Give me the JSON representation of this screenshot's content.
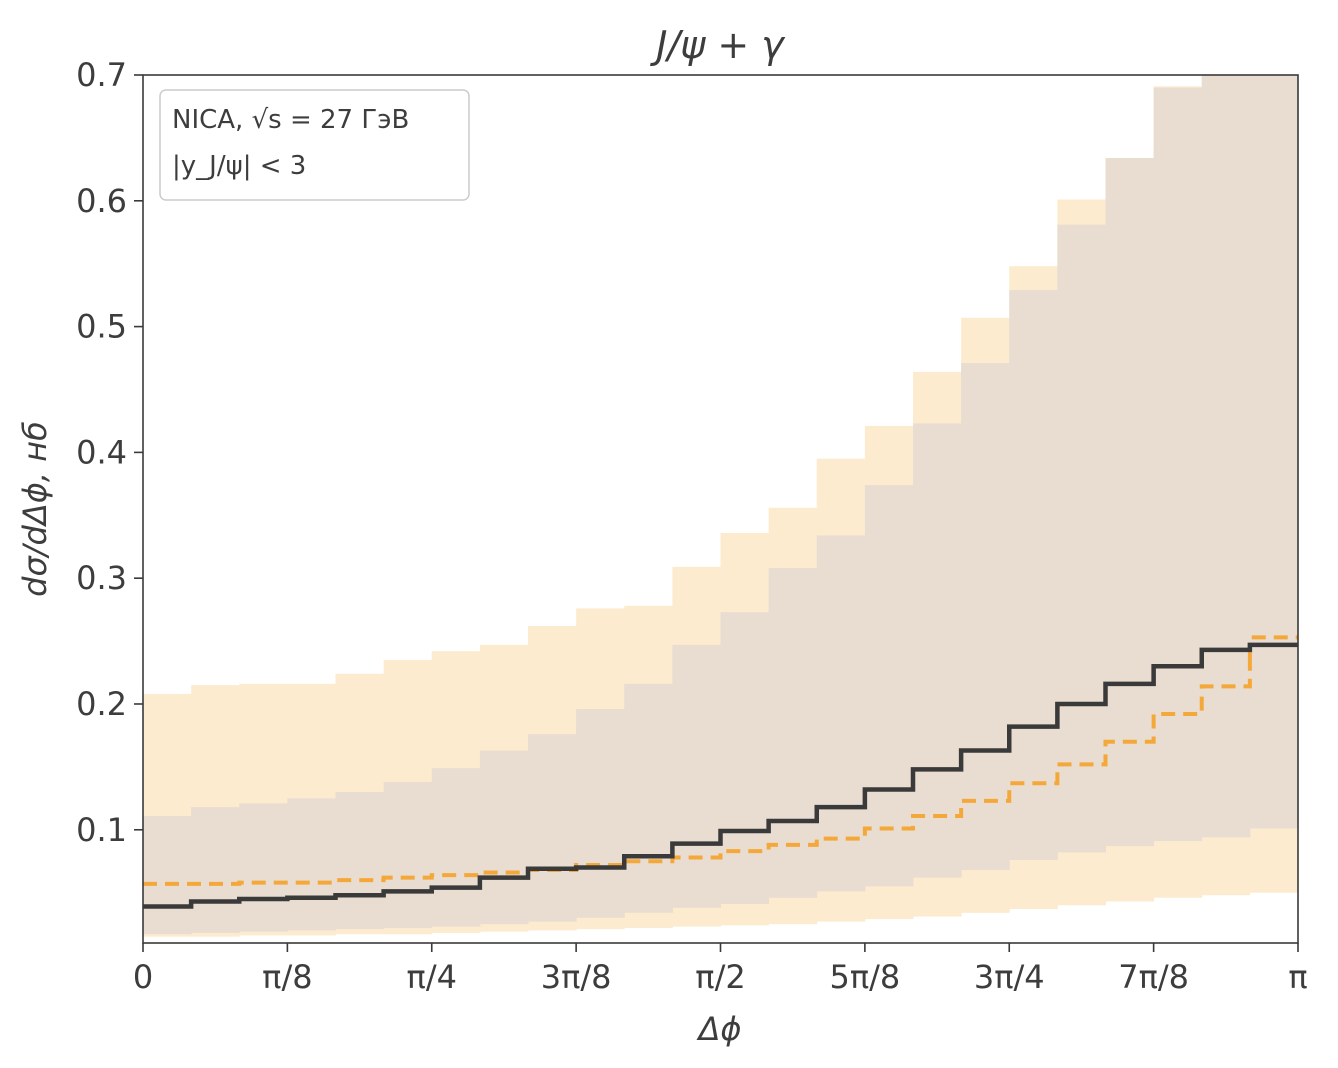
{
  "chart_data": {
    "type": "line",
    "title": "J/ψ + γ",
    "xlabel": "Δϕ",
    "ylabel": "dσ/dΔϕ, нб",
    "xlim": [
      0,
      3.14159
    ],
    "ylim": [
      0.01,
      0.7
    ],
    "x_tick_values": [
      0,
      0.3927,
      0.7854,
      1.1781,
      1.5708,
      1.9635,
      2.3562,
      2.7489,
      3.14159
    ],
    "x_tick_labels": [
      "0",
      "π/8",
      "π/4",
      "3π/8",
      "π/2",
      "5π/8",
      "3π/4",
      "7π/8",
      "π"
    ],
    "y_tick_values": [
      0.1,
      0.2,
      0.3,
      0.4,
      0.5,
      0.6,
      0.7
    ],
    "y_tick_labels": [
      "0.1",
      "0.2",
      "0.3",
      "0.4",
      "0.5",
      "0.6",
      "0.7"
    ],
    "bins": 24,
    "annotation_lines": [
      "NICA, √s = 27 ГэВ",
      "|y_J/ψ| < 3"
    ],
    "series": [
      {
        "style": "solid",
        "color": "#3a3a3a",
        "values": [
          0.039,
          0.043,
          0.045,
          0.046,
          0.048,
          0.051,
          0.054,
          0.062,
          0.069,
          0.07,
          0.079,
          0.089,
          0.099,
          0.107,
          0.118,
          0.132,
          0.148,
          0.163,
          0.182,
          0.2,
          0.216,
          0.23,
          0.243,
          0.247
        ],
        "band_low": [
          0.017,
          0.018,
          0.019,
          0.02,
          0.021,
          0.022,
          0.023,
          0.025,
          0.027,
          0.03,
          0.034,
          0.038,
          0.041,
          0.046,
          0.051,
          0.055,
          0.062,
          0.068,
          0.076,
          0.082,
          0.087,
          0.091,
          0.094,
          0.101
        ],
        "band_high": [
          0.111,
          0.118,
          0.121,
          0.125,
          0.13,
          0.138,
          0.149,
          0.163,
          0.176,
          0.196,
          0.216,
          0.247,
          0.273,
          0.308,
          0.334,
          0.374,
          0.423,
          0.471,
          0.529,
          0.581,
          0.634,
          0.69,
          0.72,
          0.72
        ],
        "band_color": "#e8ddd0"
      },
      {
        "style": "dashed",
        "color": "#f5a83a",
        "values": [
          0.057,
          0.057,
          0.058,
          0.058,
          0.06,
          0.062,
          0.064,
          0.066,
          0.068,
          0.072,
          0.075,
          0.078,
          0.083,
          0.088,
          0.093,
          0.101,
          0.111,
          0.123,
          0.137,
          0.152,
          0.17,
          0.192,
          0.214,
          0.237
        ],
        "values_last": 0.253,
        "band_low": [
          0.015,
          0.015,
          0.016,
          0.016,
          0.017,
          0.017,
          0.018,
          0.019,
          0.02,
          0.021,
          0.022,
          0.023,
          0.024,
          0.025,
          0.027,
          0.029,
          0.031,
          0.034,
          0.037,
          0.04,
          0.043,
          0.046,
          0.048,
          0.05
        ],
        "band_high": [
          0.208,
          0.215,
          0.216,
          0.216,
          0.224,
          0.235,
          0.242,
          0.247,
          0.262,
          0.276,
          0.278,
          0.309,
          0.336,
          0.356,
          0.395,
          0.421,
          0.464,
          0.507,
          0.548,
          0.601,
          0.624,
          0.691,
          0.72,
          0.72
        ],
        "band_color": "#fdebcf"
      }
    ],
    "legend_placement": "top-left",
    "grid": false
  }
}
